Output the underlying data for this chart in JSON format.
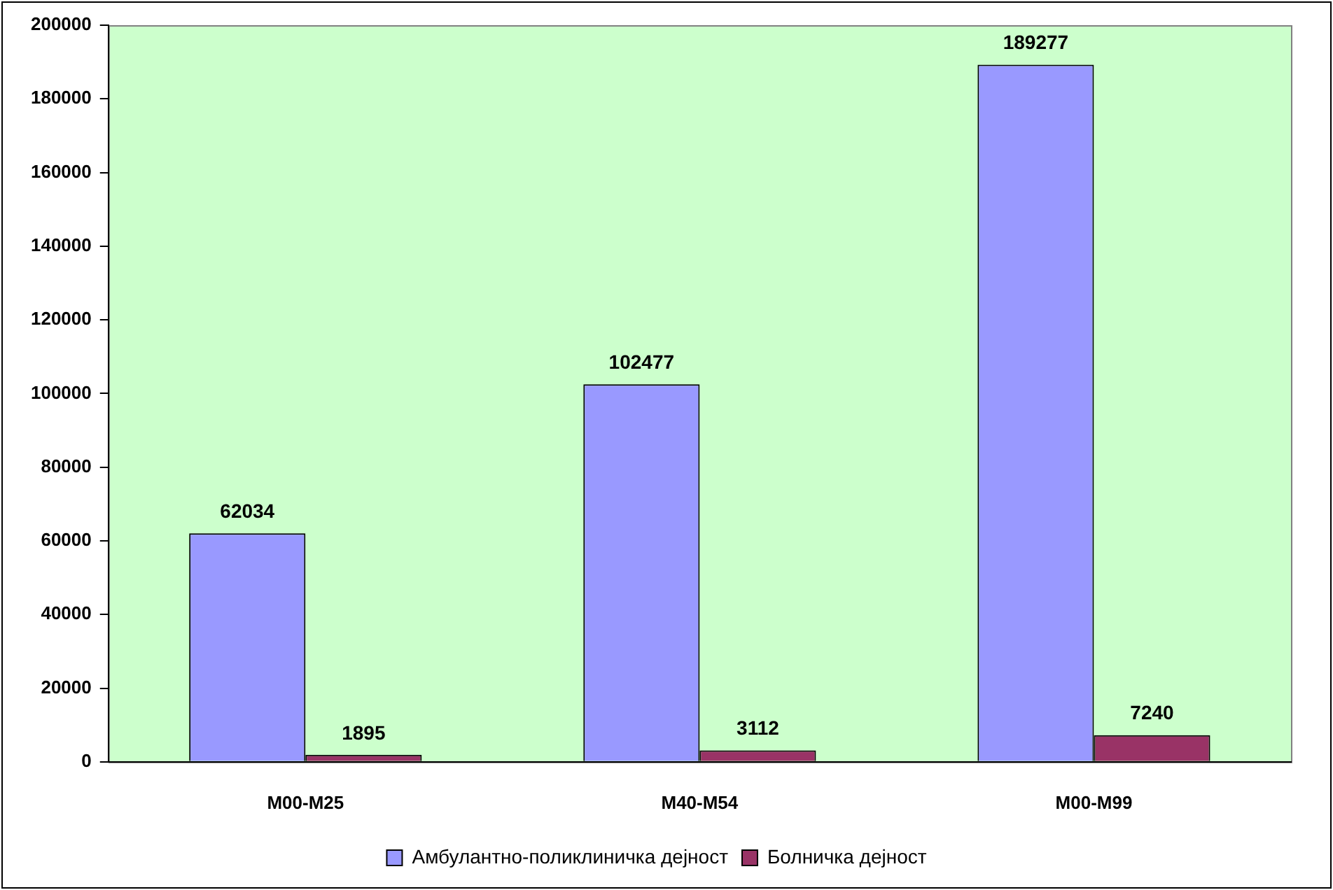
{
  "chart_data": {
    "type": "bar",
    "categories": [
      "M00-M25",
      "M40-M54",
      "M00-M99"
    ],
    "series": [
      {
        "name": "Амбулантно-поликлиничка дејност",
        "color": "#9999ff",
        "values": [
          62034,
          102477,
          189277
        ]
      },
      {
        "name": "Болничка дејност",
        "color": "#993366",
        "values": [
          1895,
          3112,
          7240
        ]
      }
    ],
    "ylim": [
      0,
      200000
    ],
    "yticks": [
      0,
      20000,
      40000,
      60000,
      80000,
      100000,
      120000,
      140000,
      160000,
      180000,
      200000
    ],
    "grid": false,
    "legend": "bottom",
    "data_labels": true
  }
}
